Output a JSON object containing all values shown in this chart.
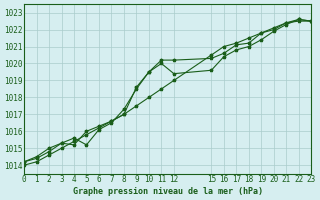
{
  "title": "Graphe pression niveau de la mer (hPa)",
  "bg_color": "#d6eef0",
  "grid_color": "#aacccc",
  "line_color": "#1a5e1a",
  "xlim": [
    0,
    23
  ],
  "ylim": [
    1013.5,
    1023.5
  ],
  "yticks": [
    1014,
    1015,
    1016,
    1017,
    1018,
    1019,
    1020,
    1021,
    1022,
    1023
  ],
  "xticks": [
    0,
    1,
    2,
    3,
    4,
    5,
    6,
    7,
    8,
    9,
    10,
    11,
    12,
    15,
    16,
    17,
    18,
    19,
    20,
    21,
    22,
    23
  ],
  "xtick_labels": [
    "0",
    "1",
    "2",
    "3",
    "4",
    "5",
    "6",
    "7",
    "8",
    "9",
    "10",
    "11",
    "12",
    "15",
    "16",
    "17",
    "18",
    "19",
    "20",
    "21",
    "22",
    "23"
  ],
  "series1_x": [
    0,
    1,
    2,
    3,
    4,
    5,
    6,
    7,
    8,
    9,
    10,
    11,
    12,
    15,
    16,
    17,
    18,
    19,
    20,
    21,
    22,
    23
  ],
  "series1_y": [
    1014.2,
    1014.5,
    1015.0,
    1015.3,
    1015.2,
    1016.0,
    1016.3,
    1016.6,
    1017.0,
    1018.6,
    1019.5,
    1020.2,
    1020.2,
    1020.3,
    1020.6,
    1021.1,
    1021.2,
    1021.8,
    1022.0,
    1022.4,
    1022.5,
    1022.5
  ],
  "series2_x": [
    0,
    1,
    2,
    3,
    4,
    5,
    6,
    7,
    8,
    9,
    10,
    11,
    12,
    15,
    16,
    17,
    18,
    19,
    20,
    21,
    22,
    23
  ],
  "series2_y": [
    1014.2,
    1014.4,
    1014.8,
    1015.3,
    1015.6,
    1015.2,
    1016.1,
    1016.5,
    1017.3,
    1018.5,
    1019.5,
    1020.0,
    1019.4,
    1019.6,
    1020.4,
    1020.8,
    1021.0,
    1021.4,
    1021.9,
    1022.3,
    1022.6,
    1022.5
  ],
  "series3_x": [
    0,
    1,
    2,
    3,
    4,
    5,
    6,
    7,
    8,
    9,
    10,
    11,
    12,
    15,
    16,
    17,
    18,
    19,
    20,
    21,
    22,
    23
  ],
  "series3_y": [
    1014.0,
    1014.2,
    1014.6,
    1015.0,
    1015.4,
    1015.8,
    1016.2,
    1016.6,
    1017.0,
    1017.5,
    1018.0,
    1018.5,
    1019.0,
    1020.5,
    1021.0,
    1021.2,
    1021.5,
    1021.8,
    1022.1,
    1022.4,
    1022.6,
    1022.5
  ]
}
